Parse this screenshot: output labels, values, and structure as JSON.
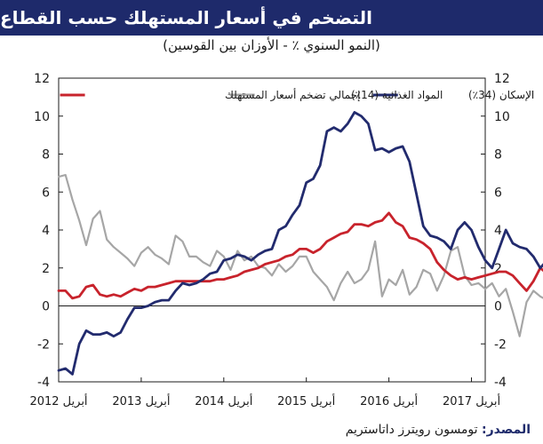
{
  "header": {
    "title": "التضخم في أسعار المستهلك حسب القطاع",
    "subtitle": "(النمو السنوي ٪ - الأوزان بين القوسين)"
  },
  "source": {
    "label": "المصدر:",
    "text": "تومسون رويترز داتاستريم"
  },
  "chart_data": {
    "type": "line",
    "title": "التضخم في أسعار المستهلك حسب القطاع",
    "subtitle": "(النمو السنوي ٪ - الأوزان بين القوسين)",
    "ylim": [
      -4,
      12
    ],
    "yticks": [
      "12",
      "10",
      "8",
      "6",
      "4",
      "2",
      "0",
      "-2",
      "-4"
    ],
    "ytick_values": [
      12,
      10,
      8,
      6,
      4,
      2,
      0,
      -2,
      -4
    ],
    "xticks": [
      "أبريل 2012",
      "أبريل 2013",
      "أبريل 2014",
      "أبريل 2015",
      "أبريل 2016",
      "أبريل 2017"
    ],
    "x_start": "2012-04",
    "x_end": "2017-06",
    "grid": false,
    "legend_position": "top",
    "series": [
      {
        "name": "إجمالي تضخم أسعار المستهلك",
        "color": "#c8232c",
        "values": [
          0.8,
          0.8,
          0.4,
          0.5,
          1.0,
          1.1,
          0.6,
          0.5,
          0.6,
          0.5,
          0.7,
          0.9,
          0.8,
          1.0,
          1.0,
          1.1,
          1.2,
          1.3,
          1.3,
          1.3,
          1.3,
          1.3,
          1.3,
          1.4,
          1.4,
          1.5,
          1.6,
          1.8,
          1.9,
          2.0,
          2.2,
          2.3,
          2.4,
          2.6,
          2.7,
          3.0,
          3.0,
          2.8,
          3.0,
          3.4,
          3.6,
          3.8,
          3.9,
          4.3,
          4.3,
          4.2,
          4.4,
          4.5,
          4.9,
          4.4,
          4.2,
          3.6,
          3.5,
          3.3,
          3.0,
          2.3,
          1.9,
          1.6,
          1.4,
          1.5,
          1.4,
          1.5,
          1.6,
          1.7,
          1.8,
          1.8,
          1.6,
          1.2,
          0.8,
          1.3,
          2.0,
          1.7,
          2.2,
          2.7,
          2.8,
          3.0,
          2.2
        ]
      },
      {
        "name": "المواد الغذائية (14٪)",
        "color": "#a6a6a6",
        "values": [
          6.8,
          6.9,
          5.6,
          4.5,
          3.2,
          4.6,
          5.0,
          3.5,
          3.1,
          2.8,
          2.5,
          2.1,
          2.8,
          3.1,
          2.7,
          2.5,
          2.2,
          3.7,
          3.4,
          2.6,
          2.6,
          2.3,
          2.1,
          2.9,
          2.6,
          1.9,
          2.9,
          2.4,
          2.6,
          2.1,
          2.0,
          1.6,
          2.2,
          1.8,
          2.1,
          2.6,
          2.6,
          1.8,
          1.4,
          1.0,
          0.3,
          1.2,
          1.8,
          1.2,
          1.4,
          1.9,
          3.4,
          0.5,
          1.4,
          1.1,
          1.9,
          0.6,
          1.0,
          1.9,
          1.7,
          0.8,
          1.6,
          2.9,
          3.1,
          1.6,
          1.1,
          1.2,
          0.9,
          1.2,
          0.5,
          0.9,
          -0.3,
          -1.6,
          0.2,
          0.8,
          0.5,
          0.3,
          0.7,
          0.9,
          0.9,
          -0.4,
          -0.5
        ]
      },
      {
        "name": "الإسكان (34٪)",
        "color": "#222b6e",
        "values": [
          -3.4,
          -3.3,
          -3.6,
          -2.0,
          -1.3,
          -1.5,
          -1.5,
          -1.4,
          -1.6,
          -1.4,
          -0.7,
          -0.1,
          -0.1,
          0.0,
          0.2,
          0.3,
          0.3,
          0.8,
          1.2,
          1.1,
          1.2,
          1.4,
          1.7,
          1.8,
          2.4,
          2.5,
          2.7,
          2.6,
          2.4,
          2.7,
          2.9,
          3.0,
          4.0,
          4.2,
          4.8,
          5.3,
          6.5,
          6.7,
          7.4,
          9.2,
          9.4,
          9.2,
          9.6,
          10.2,
          10.0,
          9.6,
          8.2,
          8.3,
          8.1,
          8.3,
          8.4,
          7.6,
          5.9,
          4.2,
          3.7,
          3.6,
          3.4,
          3.0,
          4.0,
          4.4,
          4.0,
          3.1,
          2.4,
          2.0,
          3.0,
          4.0,
          3.3,
          3.1,
          3.0,
          2.6,
          2.0,
          2.4,
          2.2,
          2.0,
          1.8,
          1.5,
          1.4
        ]
      }
    ]
  }
}
